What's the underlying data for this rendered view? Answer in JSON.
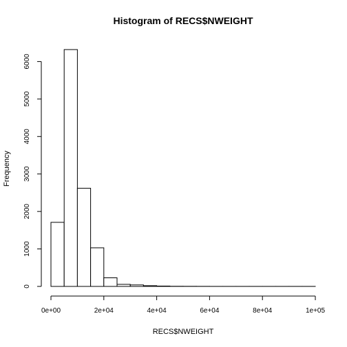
{
  "chart_data": {
    "type": "bar",
    "title": "Histogram of RECS$NWEIGHT",
    "xlabel": "RECS$NWEIGHT",
    "ylabel": "Frequency",
    "bin_width": 5000,
    "bins": [
      {
        "start": 0,
        "end": 5000,
        "count": 1710
      },
      {
        "start": 5000,
        "end": 10000,
        "count": 6320
      },
      {
        "start": 10000,
        "end": 15000,
        "count": 2620
      },
      {
        "start": 15000,
        "end": 20000,
        "count": 1030
      },
      {
        "start": 20000,
        "end": 25000,
        "count": 230
      },
      {
        "start": 25000,
        "end": 30000,
        "count": 55
      },
      {
        "start": 30000,
        "end": 35000,
        "count": 40
      },
      {
        "start": 35000,
        "end": 40000,
        "count": 20
      },
      {
        "start": 40000,
        "end": 45000,
        "count": 10
      },
      {
        "start": 45000,
        "end": 50000,
        "count": 4
      },
      {
        "start": 50000,
        "end": 55000,
        "count": 3
      },
      {
        "start": 55000,
        "end": 60000,
        "count": 2
      },
      {
        "start": 60000,
        "end": 65000,
        "count": 1
      },
      {
        "start": 65000,
        "end": 70000,
        "count": 1
      },
      {
        "start": 70000,
        "end": 75000,
        "count": 1
      },
      {
        "start": 75000,
        "end": 80000,
        "count": 1
      },
      {
        "start": 80000,
        "end": 85000,
        "count": 1
      },
      {
        "start": 85000,
        "end": 90000,
        "count": 1
      },
      {
        "start": 90000,
        "end": 95000,
        "count": 1
      },
      {
        "start": 95000,
        "end": 100000,
        "count": 1
      }
    ],
    "xlim": [
      0,
      100000
    ],
    "ylim": [
      0,
      6320
    ],
    "x_ticks": [
      {
        "value": 0,
        "label": "0e+00"
      },
      {
        "value": 20000,
        "label": "2e+04"
      },
      {
        "value": 40000,
        "label": "4e+04"
      },
      {
        "value": 60000,
        "label": "6e+04"
      },
      {
        "value": 80000,
        "label": "8e+04"
      },
      {
        "value": 100000,
        "label": "1e+05"
      }
    ],
    "y_ticks": [
      {
        "value": 0,
        "label": "0"
      },
      {
        "value": 1000,
        "label": "1000"
      },
      {
        "value": 2000,
        "label": "2000"
      },
      {
        "value": 3000,
        "label": "3000"
      },
      {
        "value": 4000,
        "label": "4000"
      },
      {
        "value": 5000,
        "label": "5000"
      },
      {
        "value": 6000,
        "label": "6000"
      }
    ],
    "grid": false,
    "bar_fill": "#ffffff",
    "bar_stroke": "#000000"
  }
}
